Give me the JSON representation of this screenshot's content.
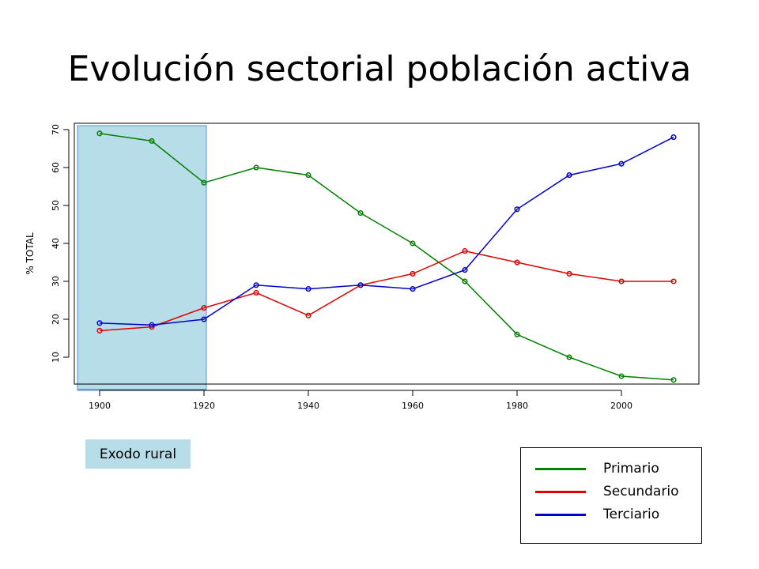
{
  "slide": {
    "title": "Evolución sectorial población activa"
  },
  "annotation": {
    "label": "Exodo rural"
  },
  "legend": {
    "items": [
      {
        "label": "Primario",
        "color": "#008000"
      },
      {
        "label": "Secundario",
        "color": "#e00000"
      },
      {
        "label": "Terciario",
        "color": "#0000cc"
      }
    ]
  },
  "chart_data": {
    "type": "line",
    "title": "",
    "xlabel": "",
    "ylabel": "% TOTAL",
    "xlim": [
      1900,
      2010
    ],
    "ylim": [
      1,
      71
    ],
    "x_ticks": [
      1900,
      1920,
      1940,
      1960,
      1980,
      2000
    ],
    "y_ticks": [
      10,
      20,
      30,
      40,
      50,
      60,
      70
    ],
    "grid": false,
    "highlight_range": {
      "x": [
        1900,
        1920
      ],
      "label": "Exodo rural",
      "color": "#b7dde8"
    },
    "legend_position": "bottom-right, outside plot",
    "x": [
      1900,
      1910,
      1920,
      1930,
      1940,
      1950,
      1960,
      1970,
      1980,
      1990,
      2000,
      2010
    ],
    "series": [
      {
        "name": "Primario",
        "color": "#008000",
        "values": [
          69,
          67,
          56,
          60,
          58,
          48,
          40,
          30,
          16,
          10,
          5,
          4
        ]
      },
      {
        "name": "Secundario",
        "color": "#e00000",
        "values": [
          17,
          18,
          23,
          27,
          21,
          29,
          32,
          38,
          35,
          32,
          30,
          30
        ]
      },
      {
        "name": "Terciario",
        "color": "#0000cc",
        "values": [
          19,
          18.5,
          20,
          29,
          28,
          29,
          28,
          33,
          49,
          58,
          61,
          68
        ]
      }
    ]
  }
}
